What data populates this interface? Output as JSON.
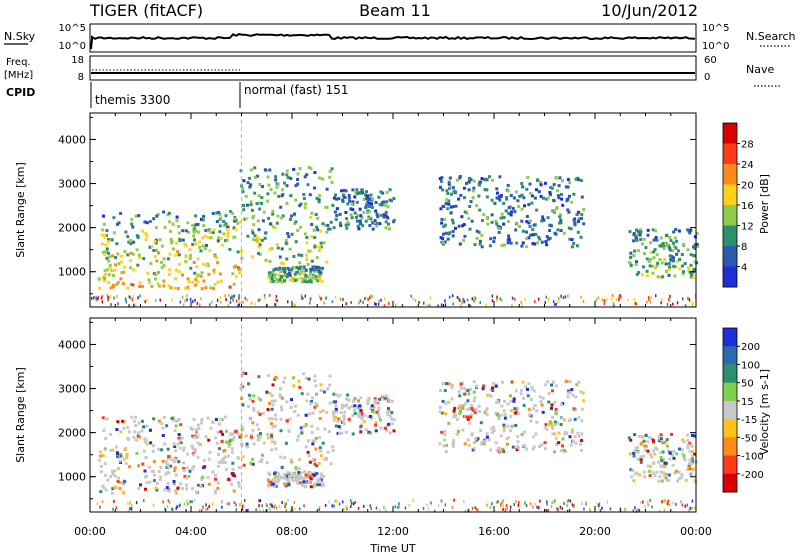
{
  "header": {
    "radar": "TIGER (fitACF)",
    "beam": "Beam 11",
    "date": "10/Jun/2012"
  },
  "strip_labels": {
    "nsky": "N.Sky",
    "nsky_top": "10^5",
    "nsky_bot": "10^0",
    "nsearch": "N.Search",
    "nsearch_top": "10^5",
    "nsearch_bot": "10^0",
    "freq": "Freq.",
    "freq_unit": "[MHz]",
    "freq_top": "18",
    "freq_bot": "8",
    "nave": "Nave",
    "nave_top": "60",
    "nave_bot": "0",
    "cpid": "CPID",
    "cpid_mode1": "themis 3300",
    "cpid_mode2": "normal (fast) 151"
  },
  "chart_data": [
    {
      "type": "heatmap",
      "panel": "power",
      "ylabel": "Slant Range [km]",
      "yticks": [
        1000,
        2000,
        3000,
        4000
      ],
      "ylim": [
        200,
        4600
      ],
      "xlim": [
        0,
        24
      ],
      "colorbar": {
        "label": "Power [dB]",
        "ticks": [
          "4",
          "8",
          "12",
          "16",
          "20",
          "24",
          "28"
        ],
        "colors": [
          "#1f2fd8",
          "#2a5bb0",
          "#2e8f6e",
          "#8fcc4a",
          "#ffd21a",
          "#ff8a1a",
          "#ff3a1a",
          "#d80000"
        ]
      },
      "echo_regions": [
        {
          "t0": 0.3,
          "t1": 5.9,
          "r0": 650,
          "r1": 2400,
          "level": "strong"
        },
        {
          "t0": 5.9,
          "t1": 9.6,
          "r0": 1200,
          "r1": 3400,
          "level": "medium"
        },
        {
          "t0": 7.0,
          "t1": 9.2,
          "r0": 800,
          "r1": 1150,
          "level": "medium"
        },
        {
          "t0": 9.6,
          "t1": 12.0,
          "r0": 2000,
          "r1": 2900,
          "level": "weak"
        },
        {
          "t0": 13.8,
          "t1": 19.5,
          "r0": 1600,
          "r1": 3200,
          "level": "weak"
        },
        {
          "t0": 21.3,
          "t1": 24.0,
          "r0": 900,
          "r1": 2000,
          "level": "medium"
        }
      ]
    },
    {
      "type": "heatmap",
      "panel": "velocity",
      "ylabel": "Slant Range [km]",
      "yticks": [
        1000,
        2000,
        3000,
        4000
      ],
      "ylim": [
        200,
        4600
      ],
      "xlim": [
        0,
        24
      ],
      "colorbar": {
        "label": "Velocity [m s-1]",
        "ticks": [
          "200",
          "100",
          "50",
          "15",
          "-15",
          "-50",
          "-100",
          "-200"
        ],
        "colors": [
          "#1f2fd8",
          "#2a6bb0",
          "#2e8f6e",
          "#7fd04a",
          "#c8c8c8",
          "#ffc21a",
          "#ff8a1a",
          "#ff3a1a",
          "#d80000"
        ]
      }
    }
  ],
  "xaxis": {
    "ticks": [
      "00:00",
      "04:00",
      "08:00",
      "12:00",
      "16:00",
      "20:00",
      "00:00"
    ],
    "label": "Time UT"
  }
}
